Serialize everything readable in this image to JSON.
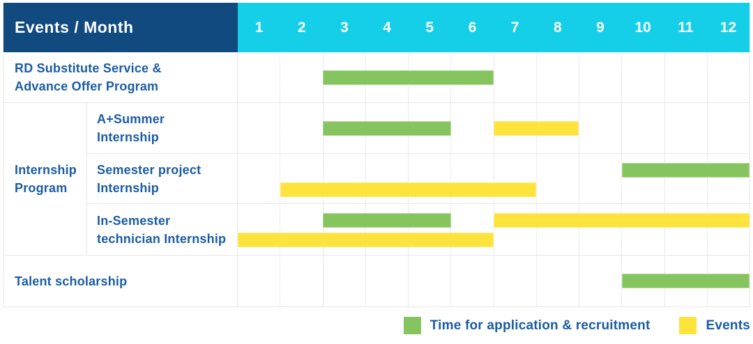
{
  "palette": {
    "navy": "#114A7F",
    "cyan": "#15CFE8",
    "green": "#86C45F",
    "yellow": "#FDE33C",
    "label_blue": "#1A5CA5",
    "grid": "#E7E7E7"
  },
  "header": {
    "title": "Events / Month",
    "months": [
      "1",
      "2",
      "3",
      "4",
      "5",
      "6",
      "7",
      "8",
      "9",
      "10",
      "11",
      "12"
    ]
  },
  "group_label_lines": [
    "Internship",
    "Program"
  ],
  "chart_data": {
    "type": "gantt",
    "x_unit": "month",
    "x_range": [
      1,
      12
    ],
    "categories": [
      "1",
      "2",
      "3",
      "4",
      "5",
      "6",
      "7",
      "8",
      "9",
      "10",
      "11",
      "12"
    ],
    "rows": [
      {
        "group": "",
        "label_lines": [
          "RD Substitute Service &",
          "Advance Offer Program"
        ],
        "bars": [
          {
            "kind": "application",
            "start": 3,
            "end": 6,
            "lane": "center"
          }
        ]
      },
      {
        "group": "Internship Program",
        "label_lines": [
          "A+Summer",
          "Internship"
        ],
        "bars": [
          {
            "kind": "application",
            "start": 3,
            "end": 5,
            "lane": "center"
          },
          {
            "kind": "event",
            "start": 7,
            "end": 8,
            "lane": "center"
          }
        ]
      },
      {
        "group": "Internship Program",
        "label_lines": [
          "Semester project",
          "Internship"
        ],
        "bars": [
          {
            "kind": "application",
            "start": 10,
            "end": 12,
            "lane": "top"
          },
          {
            "kind": "event",
            "start": 2,
            "end": 7,
            "lane": "bottom"
          }
        ]
      },
      {
        "group": "Internship Program",
        "label_lines": [
          "In-Semester",
          "technician Internship"
        ],
        "bars": [
          {
            "kind": "application",
            "start": 3,
            "end": 5,
            "lane": "top"
          },
          {
            "kind": "event",
            "start": 7,
            "end": 12,
            "lane": "top"
          },
          {
            "kind": "event",
            "start": 1,
            "end": 6,
            "lane": "bottom"
          }
        ]
      },
      {
        "group": "",
        "label_lines": [
          "Talent scholarship"
        ],
        "bars": [
          {
            "kind": "application",
            "start": 10,
            "end": 12,
            "lane": "center"
          }
        ]
      }
    ],
    "legend_position": "bottom-right",
    "kind_labels": {
      "application": "Time for application & recruitment",
      "event": "Events"
    }
  },
  "legend": {
    "items": [
      {
        "kind": "application",
        "label": "Time for application & recruitment"
      },
      {
        "kind": "event",
        "label": "Events"
      }
    ]
  }
}
